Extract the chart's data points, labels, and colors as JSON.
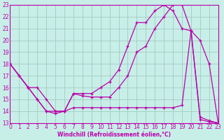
{
  "bg_color": "#c8eee8",
  "grid_color": "#a0ccbf",
  "line_color": "#bb00aa",
  "xlim": [
    0,
    23
  ],
  "ylim": [
    13,
    23
  ],
  "xticks": [
    0,
    1,
    2,
    3,
    4,
    5,
    6,
    7,
    8,
    9,
    10,
    11,
    12,
    13,
    14,
    15,
    16,
    17,
    18,
    19,
    20,
    21,
    22,
    23
  ],
  "yticks": [
    13,
    14,
    15,
    16,
    17,
    18,
    19,
    20,
    21,
    22,
    23
  ],
  "xlabel": "Windchill (Refroidissement éolien,°C)",
  "line1_x": [
    0,
    1,
    2,
    3,
    4,
    5,
    6,
    7,
    8,
    9,
    10,
    11,
    12,
    13,
    14,
    15,
    16,
    17,
    18,
    19,
    20,
    21,
    22,
    23
  ],
  "line1_y": [
    18,
    17,
    16,
    16,
    15,
    14,
    14,
    15.5,
    15.3,
    15.2,
    15.2,
    15.2,
    16,
    17,
    19,
    19.5,
    21,
    22,
    23,
    23,
    20.8,
    20,
    18,
    13
  ],
  "line2_x": [
    0,
    2,
    3,
    4,
    5,
    6,
    7,
    8,
    9,
    10,
    11,
    12,
    13,
    14,
    15,
    16,
    17,
    18,
    19,
    20,
    21,
    22,
    23
  ],
  "line2_y": [
    18,
    16,
    15,
    14,
    14,
    14,
    15.5,
    15.5,
    15.5,
    16,
    16.5,
    17.5,
    19.5,
    21.5,
    21.5,
    22.5,
    23,
    22.5,
    21,
    20.8,
    13.5,
    13.2,
    13
  ],
  "line3_x": [
    0,
    1,
    2,
    3,
    4,
    5,
    6,
    7,
    8,
    9,
    10,
    11,
    12,
    13,
    14,
    15,
    16,
    17,
    18,
    19,
    20,
    21,
    22,
    23
  ],
  "line3_y": [
    18,
    17,
    16,
    15,
    14,
    13.8,
    14,
    14.3,
    14.3,
    14.3,
    14.3,
    14.3,
    14.3,
    14.3,
    14.3,
    14.3,
    14.3,
    14.3,
    14.3,
    14.5,
    20.8,
    13.3,
    13.1,
    13
  ]
}
